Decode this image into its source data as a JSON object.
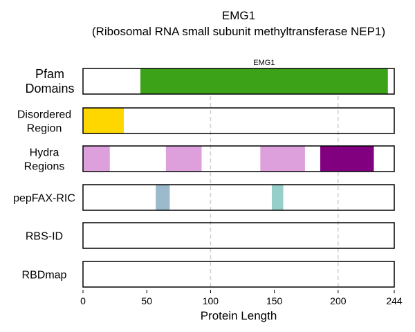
{
  "chart_data": {
    "type": "protein-domain-tracks",
    "title": "EMG1",
    "subtitle": "(Ribosomal RNA small subunit methyltransferase NEP1)",
    "xlabel": "Protein Length",
    "xlim": [
      0,
      244
    ],
    "xticks": [
      0,
      50,
      100,
      150,
      200,
      244
    ],
    "gridlines": [
      100,
      200
    ],
    "tracks": [
      {
        "label_lines": [
          "Pfam",
          "Domains"
        ],
        "segments": [
          {
            "start": 45,
            "end": 239,
            "color": "#3ca318",
            "label": "EMG1"
          }
        ]
      },
      {
        "label_lines": [
          "Disordered",
          "Region"
        ],
        "segments": [
          {
            "start": 0,
            "end": 32,
            "color": "#ffd700"
          }
        ]
      },
      {
        "label_lines": [
          "Hydra",
          "Regions"
        ],
        "segments": [
          {
            "start": 0,
            "end": 21,
            "color": "#dda0dd"
          },
          {
            "start": 65,
            "end": 93,
            "color": "#dda0dd"
          },
          {
            "start": 139,
            "end": 174,
            "color": "#dda0dd"
          },
          {
            "start": 186,
            "end": 228,
            "color": "#800080"
          }
        ]
      },
      {
        "label_lines": [
          "pepFAX-RIC"
        ],
        "segments": [
          {
            "start": 57,
            "end": 68,
            "color": "#9bbbcc"
          },
          {
            "start": 148,
            "end": 157,
            "color": "#96cfc9"
          }
        ]
      },
      {
        "label_lines": [
          "RBS-ID"
        ],
        "segments": []
      },
      {
        "label_lines": [
          "RBDmap"
        ],
        "segments": []
      }
    ]
  }
}
